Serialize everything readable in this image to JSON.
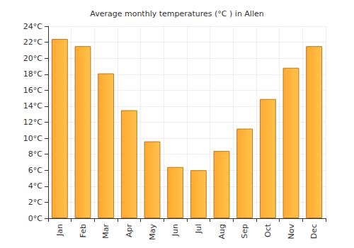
{
  "chart_data": {
    "type": "bar",
    "title": "Average monthly temperatures (°C ) in Allen",
    "categories": [
      "Jan",
      "Feb",
      "Mar",
      "Apr",
      "May",
      "Jun",
      "Jul",
      "Aug",
      "Sep",
      "Oct",
      "Nov",
      "Dec"
    ],
    "values": [
      22.4,
      21.5,
      18.1,
      13.5,
      9.6,
      6.4,
      6.0,
      8.4,
      11.2,
      14.9,
      18.8,
      21.5
    ],
    "color": "#ffa930",
    "ylim": [
      0,
      24
    ],
    "yticks": [
      {
        "value": 0,
        "label": "0°C"
      },
      {
        "value": 2,
        "label": "2°C"
      },
      {
        "value": 4,
        "label": "4°C"
      },
      {
        "value": 6,
        "label": "6°C"
      },
      {
        "value": 8,
        "label": "8°C"
      },
      {
        "value": 10,
        "label": "10°C"
      },
      {
        "value": 12,
        "label": "12°C"
      },
      {
        "value": 14,
        "label": "14°C"
      },
      {
        "value": 16,
        "label": "16°C"
      },
      {
        "value": 18,
        "label": "18°C"
      },
      {
        "value": 20,
        "label": "20°C"
      },
      {
        "value": 22,
        "label": "22°C"
      },
      {
        "value": 24,
        "label": "24°C"
      }
    ],
    "grid": true
  }
}
